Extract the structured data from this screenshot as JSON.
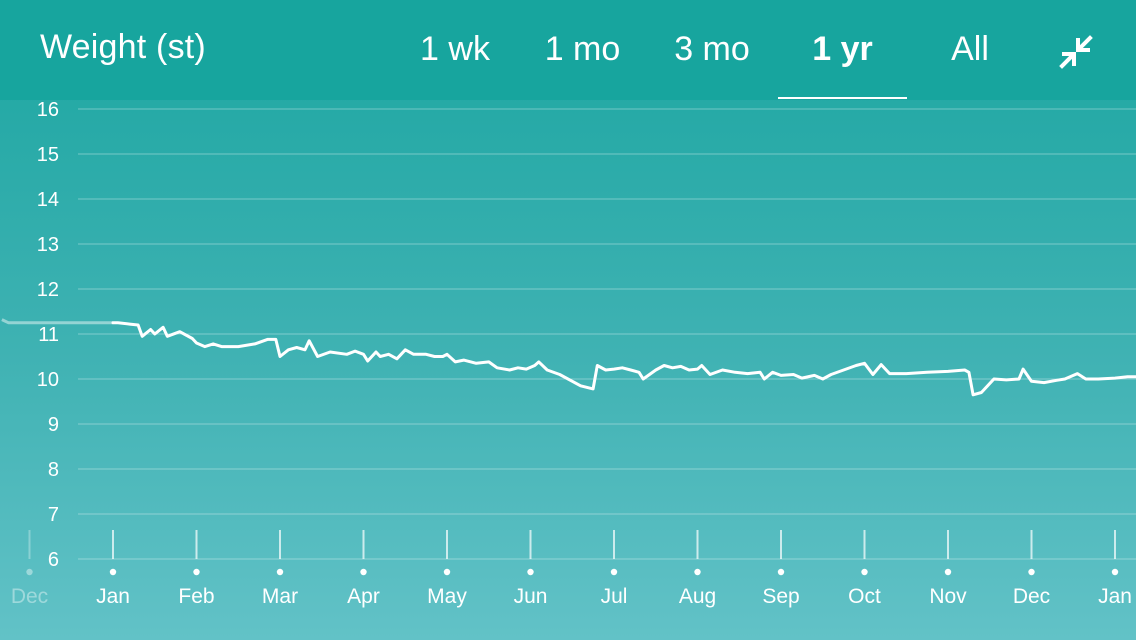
{
  "header": {
    "title": "Weight (st)",
    "tabs": [
      {
        "label": "1 wk",
        "active": false
      },
      {
        "label": "1 mo",
        "active": false
      },
      {
        "label": "3 mo",
        "active": false
      },
      {
        "label": "1 yr",
        "active": true
      },
      {
        "label": "All",
        "active": false
      }
    ],
    "collapse_icon": "collapse-arrows-icon"
  },
  "colors": {
    "header_bg": "#17a59e",
    "line": "#ffffff"
  },
  "chart_data": {
    "type": "line",
    "ylim": [
      6,
      16
    ],
    "y_ticks": [
      6,
      7,
      8,
      9,
      10,
      11,
      12,
      13,
      14,
      15,
      16
    ],
    "x_ticks": [
      "Dec",
      "Jan",
      "Feb",
      "Mar",
      "Apr",
      "May",
      "Jun",
      "Jul",
      "Aug",
      "Sep",
      "Oct",
      "Nov",
      "Dec",
      "Jan"
    ],
    "x_tick_faded": [
      true,
      false,
      false,
      false,
      false,
      false,
      false,
      false,
      false,
      false,
      false,
      false,
      false,
      false
    ],
    "grid": true,
    "series": [
      {
        "points": [
          [
            -1.33,
            11.32
          ],
          [
            -1.25,
            11.25
          ],
          [
            -1.1,
            11.25
          ],
          [
            -0.9,
            11.25
          ],
          [
            -0.7,
            11.25
          ],
          [
            -0.5,
            11.25
          ],
          [
            -0.3,
            11.25
          ],
          [
            -0.1,
            11.25
          ],
          [
            0,
            11.25
          ],
          [
            0.06,
            11.25
          ],
          [
            0.2,
            11.22
          ],
          [
            0.3,
            11.2
          ],
          [
            0.35,
            10.95
          ],
          [
            0.45,
            11.1
          ],
          [
            0.5,
            11.0
          ],
          [
            0.6,
            11.15
          ],
          [
            0.65,
            10.95
          ],
          [
            0.8,
            11.05
          ],
          [
            0.95,
            10.9
          ],
          [
            1.0,
            10.8
          ],
          [
            1.1,
            10.72
          ],
          [
            1.2,
            10.78
          ],
          [
            1.3,
            10.72
          ],
          [
            1.5,
            10.72
          ],
          [
            1.7,
            10.78
          ],
          [
            1.85,
            10.88
          ],
          [
            1.95,
            10.88
          ],
          [
            2.0,
            10.5
          ],
          [
            2.1,
            10.65
          ],
          [
            2.2,
            10.7
          ],
          [
            2.3,
            10.65
          ],
          [
            2.35,
            10.85
          ],
          [
            2.45,
            10.5
          ],
          [
            2.6,
            10.6
          ],
          [
            2.8,
            10.55
          ],
          [
            2.9,
            10.62
          ],
          [
            3.0,
            10.55
          ],
          [
            3.05,
            10.4
          ],
          [
            3.15,
            10.6
          ],
          [
            3.2,
            10.5
          ],
          [
            3.3,
            10.55
          ],
          [
            3.4,
            10.45
          ],
          [
            3.5,
            10.65
          ],
          [
            3.6,
            10.55
          ],
          [
            3.75,
            10.55
          ],
          [
            3.85,
            10.5
          ],
          [
            3.95,
            10.5
          ],
          [
            4.0,
            10.55
          ],
          [
            4.1,
            10.38
          ],
          [
            4.2,
            10.42
          ],
          [
            4.35,
            10.35
          ],
          [
            4.5,
            10.38
          ],
          [
            4.6,
            10.25
          ],
          [
            4.75,
            10.2
          ],
          [
            4.85,
            10.25
          ],
          [
            4.95,
            10.22
          ],
          [
            5.05,
            10.3
          ],
          [
            5.1,
            10.38
          ],
          [
            5.2,
            10.2
          ],
          [
            5.35,
            10.1
          ],
          [
            5.5,
            9.95
          ],
          [
            5.6,
            9.85
          ],
          [
            5.75,
            9.78
          ],
          [
            5.8,
            10.3
          ],
          [
            5.9,
            10.2
          ],
          [
            6.0,
            10.22
          ],
          [
            6.1,
            10.25
          ],
          [
            6.2,
            10.2
          ],
          [
            6.3,
            10.15
          ],
          [
            6.35,
            10.0
          ],
          [
            6.5,
            10.2
          ],
          [
            6.6,
            10.3
          ],
          [
            6.7,
            10.25
          ],
          [
            6.8,
            10.28
          ],
          [
            6.9,
            10.2
          ],
          [
            7.0,
            10.22
          ],
          [
            7.05,
            10.3
          ],
          [
            7.15,
            10.1
          ],
          [
            7.3,
            10.2
          ],
          [
            7.45,
            10.15
          ],
          [
            7.6,
            10.12
          ],
          [
            7.75,
            10.15
          ],
          [
            7.8,
            10.0
          ],
          [
            7.9,
            10.15
          ],
          [
            8.0,
            10.08
          ],
          [
            8.15,
            10.1
          ],
          [
            8.25,
            10.02
          ],
          [
            8.4,
            10.08
          ],
          [
            8.5,
            10.0
          ],
          [
            8.6,
            10.1
          ],
          [
            8.75,
            10.2
          ],
          [
            8.9,
            10.3
          ],
          [
            9.0,
            10.35
          ],
          [
            9.1,
            10.1
          ],
          [
            9.2,
            10.32
          ],
          [
            9.3,
            10.12
          ],
          [
            9.5,
            10.12
          ],
          [
            9.75,
            10.15
          ],
          [
            10.0,
            10.17
          ],
          [
            10.2,
            10.2
          ],
          [
            10.25,
            10.15
          ],
          [
            10.3,
            9.65
          ],
          [
            10.4,
            9.7
          ],
          [
            10.55,
            10.0
          ],
          [
            10.7,
            9.98
          ],
          [
            10.85,
            10.0
          ],
          [
            10.9,
            10.22
          ],
          [
            11.0,
            9.95
          ],
          [
            11.15,
            9.92
          ],
          [
            11.3,
            9.97
          ],
          [
            11.4,
            10.0
          ],
          [
            11.55,
            10.12
          ],
          [
            11.65,
            10.0
          ],
          [
            11.8,
            10.0
          ],
          [
            12.0,
            10.02
          ],
          [
            12.15,
            10.05
          ],
          [
            12.3,
            10.05
          ],
          [
            12.4,
            10.02
          ]
        ]
      }
    ]
  }
}
